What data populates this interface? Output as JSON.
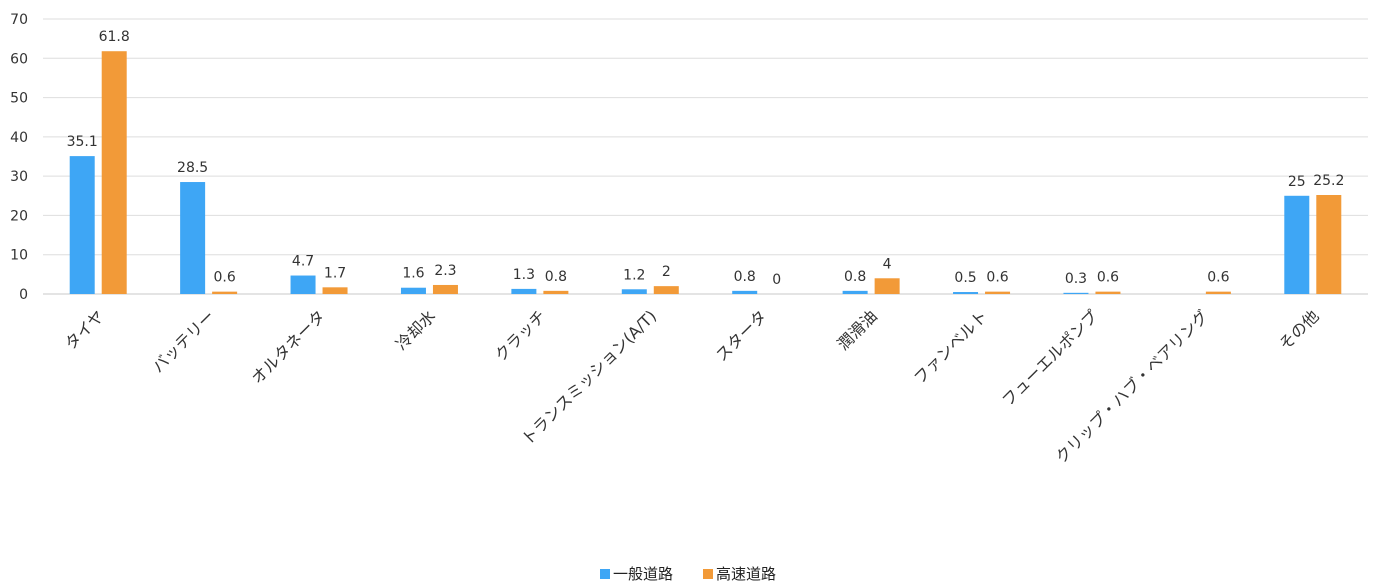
{
  "chart_data": {
    "type": "bar",
    "categories": [
      "タイヤ",
      "バッテリー",
      "オルタネータ",
      "冷却水",
      "クラッチ",
      "トランスミッション(A/T)",
      "スタータ",
      "潤滑油",
      "ファンベルト",
      "フューエルポンプ",
      "クリップ・ハブ・ベアリング",
      "その他"
    ],
    "series": [
      {
        "name": "一般道路",
        "color": "#3ea6f5",
        "values": [
          35.1,
          28.5,
          4.7,
          1.6,
          1.3,
          1.2,
          0.8,
          0.8,
          0.5,
          0.3,
          null,
          25
        ],
        "labels": [
          "35.1",
          "28.5",
          "4.7",
          "1.6",
          "1.3",
          "1.2",
          "0.8",
          "0.8",
          "0.5",
          "0.3",
          "",
          "25"
        ]
      },
      {
        "name": "高速道路",
        "color": "#f29a38",
        "values": [
          61.8,
          0.6,
          1.7,
          2.3,
          0.8,
          2,
          0,
          4,
          0.6,
          0.6,
          0.6,
          25.2
        ],
        "labels": [
          "61.8",
          "0.6",
          "1.7",
          "2.3",
          "0.8",
          "2",
          "0",
          "4",
          "0.6",
          "0.6",
          "0.6",
          "25.2"
        ]
      }
    ],
    "yticks": [
      "0",
      "10",
      "20",
      "30",
      "40",
      "50",
      "60",
      "70"
    ],
    "ylim": [
      0,
      70
    ],
    "grid": true,
    "legend_position": "bottom"
  }
}
